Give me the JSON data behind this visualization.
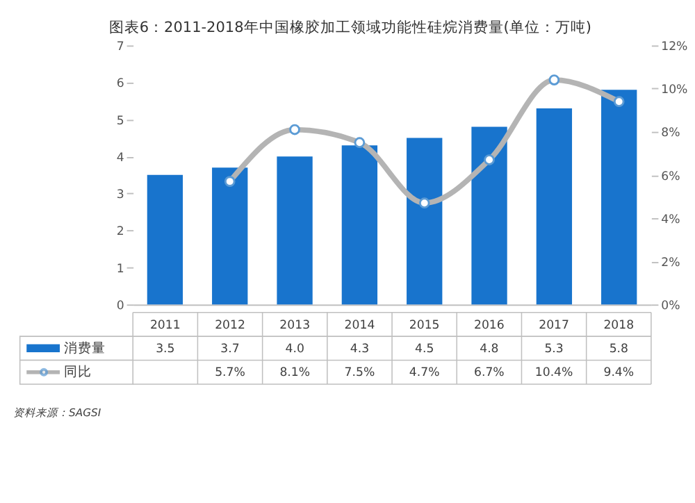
{
  "chart_data": {
    "type": "bar",
    "title": "图表6：2011-2018年中国橡胶加工领域功能性硅烷消费量(单位：万吨)",
    "categories": [
      "2011",
      "2012",
      "2013",
      "2014",
      "2015",
      "2016",
      "2017",
      "2018"
    ],
    "series": [
      {
        "name": "消费量",
        "color": "#1874cd",
        "values": [
          3.5,
          3.7,
          4.0,
          4.3,
          4.5,
          4.8,
          5.3,
          5.8
        ],
        "value_labels": [
          "3.5",
          "3.7",
          "4.0",
          "4.3",
          "4.5",
          "4.8",
          "5.3",
          "5.8"
        ]
      },
      {
        "name": "同比",
        "type": "line",
        "axis": "y2",
        "color": "#b4b4b4",
        "marker": "circle",
        "values": [
          null,
          5.7,
          8.1,
          7.5,
          4.7,
          6.7,
          10.4,
          9.4
        ],
        "value_labels": [
          null,
          "5.7%",
          "8.1%",
          "7.5%",
          "4.7%",
          "6.7%",
          "10.4%",
          "9.4%"
        ]
      }
    ],
    "ylim": [
      0,
      7
    ],
    "yticks": [
      0,
      1,
      2,
      3,
      4,
      5,
      6,
      7
    ],
    "y2lim": [
      0,
      12
    ],
    "y2ticks": [
      {
        "value": 0,
        "label": "0%"
      },
      {
        "value": 2,
        "label": "2%"
      },
      {
        "value": 4,
        "label": "4%"
      },
      {
        "value": 6,
        "label": "6%"
      },
      {
        "value": 8,
        "label": "8%"
      },
      {
        "value": 10,
        "label": "10%"
      },
      {
        "value": 12,
        "label": "12%"
      }
    ],
    "grid": false,
    "legend": "bottom",
    "annotations": [
      "资料来源：SAGSI"
    ]
  }
}
